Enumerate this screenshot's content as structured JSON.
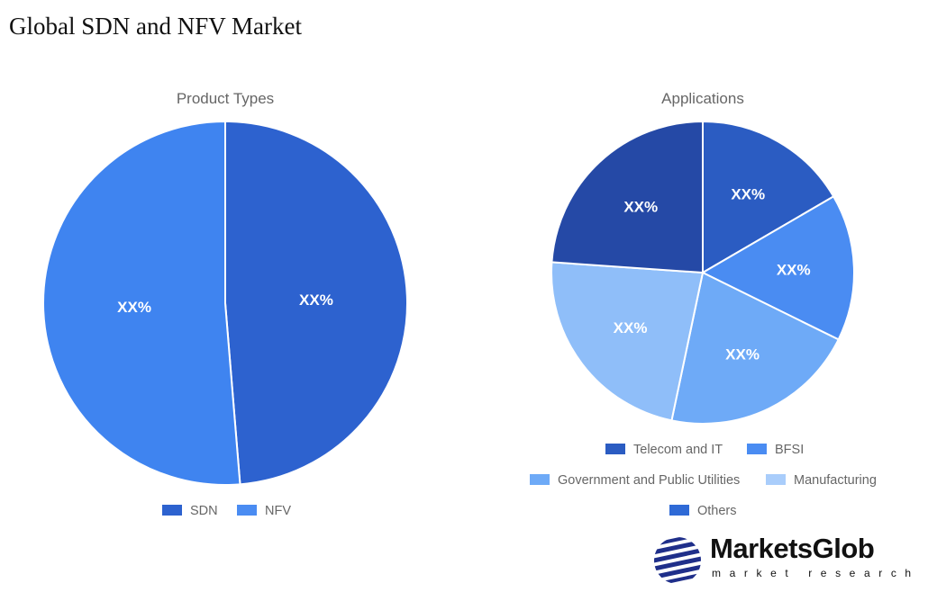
{
  "page_title": "Global SDN and NFV Market",
  "logo": {
    "name": "MarketsGlob",
    "tagline": "market research"
  },
  "chart_data": [
    {
      "type": "pie",
      "title": "Product Types",
      "categories": [
        "SDN",
        "NFV"
      ],
      "values": [
        48.7,
        51.3
      ],
      "data_labels": [
        "XX%",
        "XX%"
      ],
      "colors": [
        "#2d62cf",
        "#3f84f0"
      ],
      "legend_colors": [
        "#2d62cf",
        "#4a8cf2"
      ],
      "legend": "bottom"
    },
    {
      "type": "pie",
      "title": "Applications",
      "categories": [
        "Telecom and IT",
        "BFSI",
        "Government and Public Utilities",
        "Manufacturing",
        "Others"
      ],
      "values": [
        16.6,
        15.7,
        21.0,
        22.8,
        23.9
      ],
      "data_labels": [
        "XX%",
        "XX%",
        "XX%",
        "XX%",
        "XX%"
      ],
      "colors": [
        "#2b5cc2",
        "#4a8cf2",
        "#6eaaf7",
        "#8fbef9",
        "#2549a6"
      ],
      "legend_colors": [
        "#2b5cc2",
        "#4a8cf2",
        "#6eaaf7",
        "#a9cdfb",
        "#2f6ad6"
      ],
      "legend": "bottom"
    }
  ]
}
